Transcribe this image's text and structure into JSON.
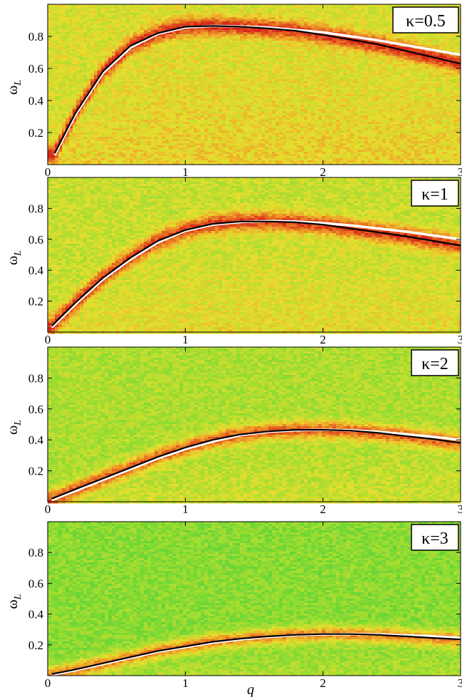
{
  "chart_data": [
    {
      "type": "heatmap",
      "panel_label": "κ=0.5",
      "ylabel": "ω",
      "ylabel_sub": "L",
      "xlim": [
        0,
        3
      ],
      "ylim": [
        0,
        1
      ],
      "xticks": [
        "0",
        "1",
        "2",
        "3"
      ],
      "yticks": [
        "0.2",
        "0.4",
        "0.6",
        "0.8"
      ],
      "ridge_x": [
        0.05,
        0.2,
        0.4,
        0.6,
        0.8,
        1.0,
        1.2,
        1.4,
        1.6,
        1.8,
        2.0,
        2.2,
        2.4,
        2.6,
        2.8,
        3.0
      ],
      "black_curve_y": [
        0.07,
        0.32,
        0.58,
        0.74,
        0.82,
        0.86,
        0.865,
        0.86,
        0.85,
        0.835,
        0.81,
        0.78,
        0.75,
        0.71,
        0.67,
        0.63
      ],
      "white_curve_y": [
        0.06,
        0.31,
        0.57,
        0.73,
        0.815,
        0.855,
        0.865,
        0.862,
        0.855,
        0.84,
        0.825,
        0.8,
        0.775,
        0.745,
        0.715,
        0.685
      ]
    },
    {
      "type": "heatmap",
      "panel_label": "κ=1",
      "ylabel": "ω",
      "ylabel_sub": "L",
      "xlim": [
        0,
        3
      ],
      "ylim": [
        0,
        1
      ],
      "xticks": [
        "0",
        "1",
        "2",
        "3"
      ],
      "yticks": [
        "0.2",
        "0.4",
        "0.6",
        "0.8"
      ],
      "ridge_x": [
        0.03,
        0.2,
        0.4,
        0.6,
        0.8,
        1.0,
        1.2,
        1.4,
        1.6,
        1.8,
        2.0,
        2.2,
        2.4,
        2.6,
        2.8,
        3.0
      ],
      "black_curve_y": [
        0.04,
        0.19,
        0.35,
        0.48,
        0.59,
        0.66,
        0.7,
        0.715,
        0.715,
        0.71,
        0.695,
        0.67,
        0.645,
        0.62,
        0.59,
        0.56
      ],
      "white_curve_y": [
        0.03,
        0.18,
        0.34,
        0.47,
        0.58,
        0.655,
        0.695,
        0.712,
        0.718,
        0.715,
        0.705,
        0.69,
        0.67,
        0.65,
        0.625,
        0.6
      ]
    },
    {
      "type": "heatmap",
      "panel_label": "κ=2",
      "ylabel": "ω",
      "ylabel_sub": "L",
      "xlim": [
        0,
        3
      ],
      "ylim": [
        0,
        1
      ],
      "xticks": [
        "0",
        "1",
        "2",
        "3"
      ],
      "yticks": [
        "0.2",
        "0.4",
        "0.6",
        "0.8"
      ],
      "ridge_x": [
        0.03,
        0.2,
        0.4,
        0.6,
        0.8,
        1.0,
        1.2,
        1.4,
        1.6,
        1.8,
        2.0,
        2.2,
        2.4,
        2.6,
        2.8,
        3.0
      ],
      "black_curve_y": [
        0.02,
        0.08,
        0.15,
        0.22,
        0.29,
        0.35,
        0.4,
        0.435,
        0.455,
        0.465,
        0.465,
        0.46,
        0.445,
        0.425,
        0.405,
        0.38
      ],
      "white_curve_y": [
        0.01,
        0.07,
        0.14,
        0.21,
        0.28,
        0.34,
        0.39,
        0.43,
        0.452,
        0.462,
        0.465,
        0.462,
        0.452,
        0.437,
        0.42,
        0.4
      ]
    },
    {
      "type": "heatmap",
      "panel_label": "κ=3",
      "ylabel": "ω",
      "ylabel_sub": "L",
      "xlabel": "q",
      "xlim": [
        0,
        3
      ],
      "ylim": [
        0,
        1
      ],
      "xticks": [
        "0",
        "1",
        "2",
        "3"
      ],
      "yticks": [
        "0.2",
        "0.4",
        "0.6",
        "0.8"
      ],
      "ridge_x": [
        0.03,
        0.2,
        0.4,
        0.6,
        0.8,
        1.0,
        1.2,
        1.4,
        1.6,
        1.8,
        2.0,
        2.2,
        2.4,
        2.6,
        2.8,
        3.0
      ],
      "black_curve_y": [
        0.01,
        0.04,
        0.08,
        0.12,
        0.16,
        0.19,
        0.22,
        0.24,
        0.255,
        0.265,
        0.27,
        0.27,
        0.265,
        0.255,
        0.245,
        0.235
      ],
      "white_curve_y": [
        0.005,
        0.035,
        0.075,
        0.115,
        0.155,
        0.185,
        0.215,
        0.235,
        0.252,
        0.262,
        0.268,
        0.27,
        0.268,
        0.262,
        0.255,
        0.245
      ]
    }
  ],
  "colors": {
    "background_low": "#3ecf3a",
    "background_mid": "#e6df2e",
    "ridge_high": "#d8281a",
    "curve_black": "#000000",
    "curve_white": "#ffffff"
  }
}
